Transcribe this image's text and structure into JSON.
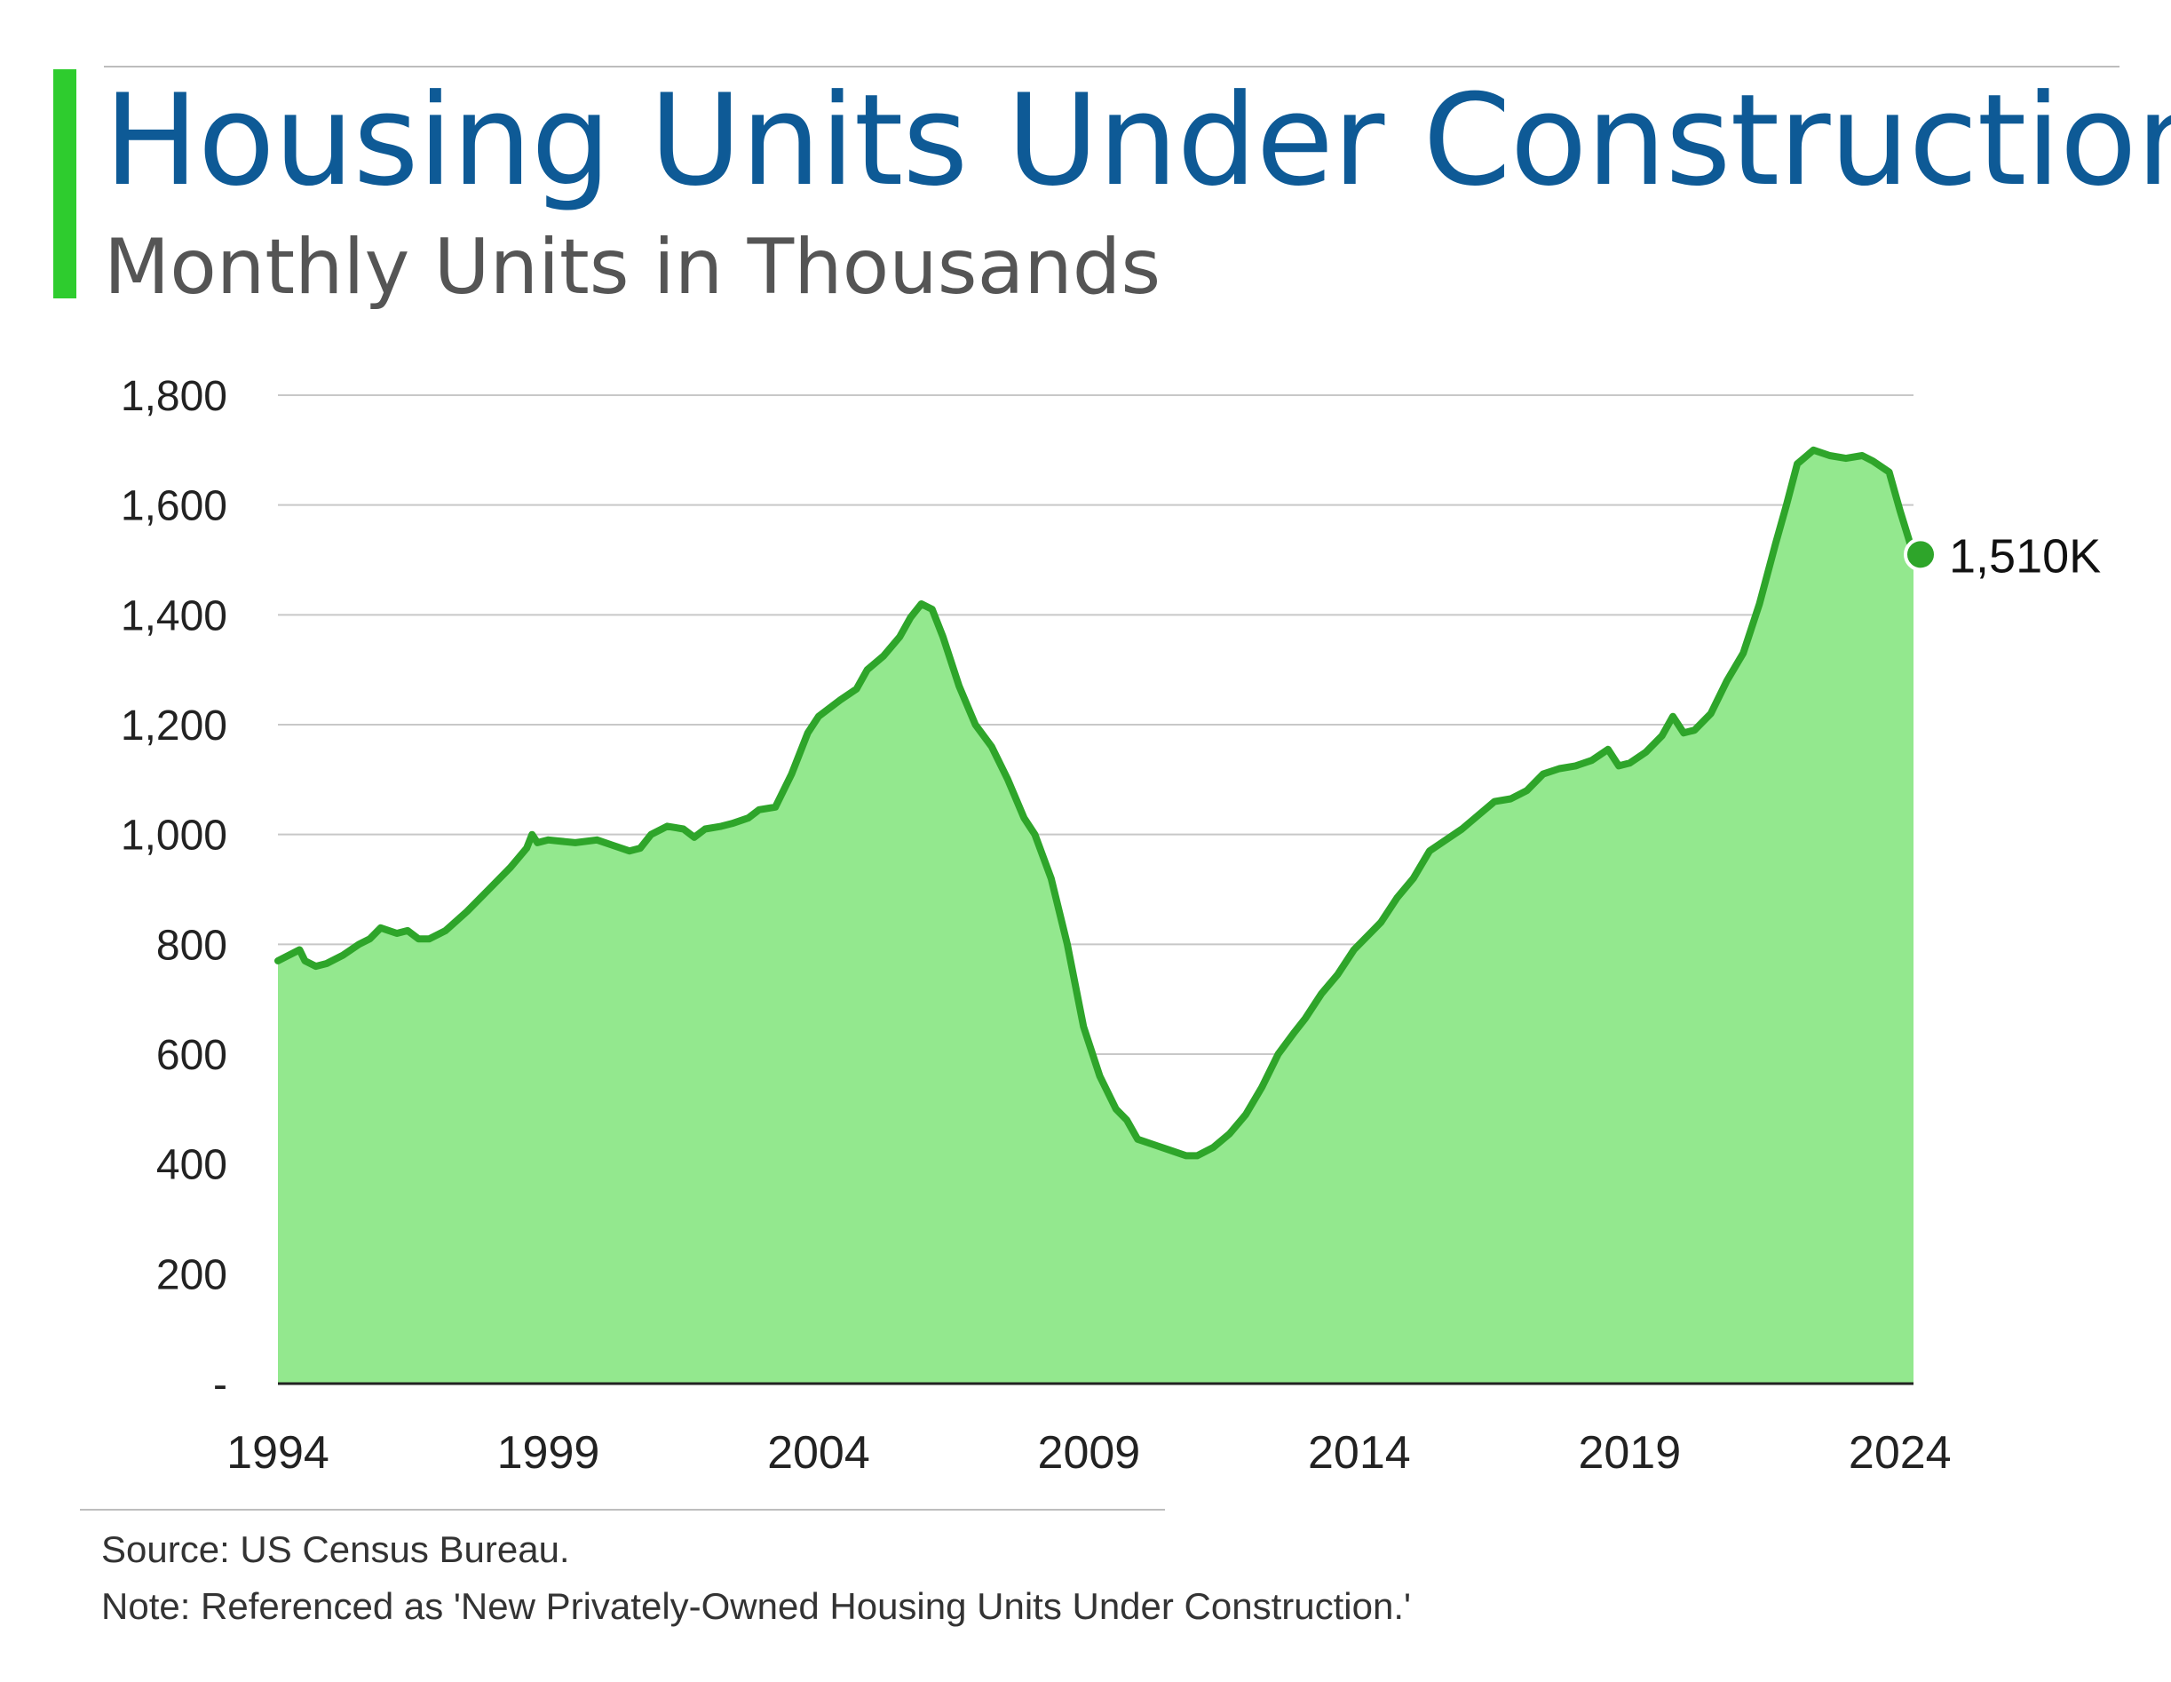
{
  "header": {
    "title": "Housing Units Under Construction",
    "subtitle": "Monthly Units in Thousands"
  },
  "footer": {
    "source": "Source: US Census Bureau.",
    "note": "Note: Referenced as 'New Privately-Owned Housing Units Under Construction.'"
  },
  "colors": {
    "title": "#0e5a96",
    "accent": "#2ecc2e",
    "area_fill": "#93e88e",
    "line": "#2ea52a",
    "gridline": "#c8c8c8"
  },
  "chart_data": {
    "type": "area",
    "title": "Housing Units Under Construction",
    "subtitle": "Monthly Units in Thousands",
    "xlabel": "",
    "ylabel": "",
    "xlim": [
      1994,
      2024.25
    ],
    "ylim": [
      0,
      1800
    ],
    "grid": true,
    "legend": "none",
    "x_ticks": [
      "1994",
      "1999",
      "2004",
      "2009",
      "2014",
      "2019",
      "2024"
    ],
    "y_ticks": [
      "-",
      "200",
      "400",
      "600",
      "800",
      "1,000",
      "1,200",
      "1,400",
      "1,600",
      "1,800"
    ],
    "series": [
      {
        "values": [
          [
            1994.0,
            770
          ],
          [
            1994.2,
            780
          ],
          [
            1994.4,
            790
          ],
          [
            1994.5,
            770
          ],
          [
            1994.7,
            760
          ],
          [
            1994.9,
            765
          ],
          [
            1995.2,
            780
          ],
          [
            1995.5,
            800
          ],
          [
            1995.7,
            810
          ],
          [
            1995.9,
            830
          ],
          [
            1996.2,
            820
          ],
          [
            1996.4,
            825
          ],
          [
            1996.6,
            810
          ],
          [
            1996.8,
            810
          ],
          [
            1997.1,
            825
          ],
          [
            1997.5,
            860
          ],
          [
            1997.9,
            900
          ],
          [
            1998.3,
            940
          ],
          [
            1998.6,
            975
          ],
          [
            1998.7,
            1000
          ],
          [
            1998.8,
            985
          ],
          [
            1999.0,
            990
          ],
          [
            1999.5,
            985
          ],
          [
            1999.9,
            990
          ],
          [
            2000.2,
            980
          ],
          [
            2000.5,
            970
          ],
          [
            2000.7,
            975
          ],
          [
            2000.9,
            1000
          ],
          [
            2001.2,
            1015
          ],
          [
            2001.5,
            1010
          ],
          [
            2001.7,
            995
          ],
          [
            2001.9,
            1010
          ],
          [
            2002.2,
            1015
          ],
          [
            2002.4,
            1020
          ],
          [
            2002.7,
            1030
          ],
          [
            2002.9,
            1045
          ],
          [
            2003.2,
            1050
          ],
          [
            2003.5,
            1110
          ],
          [
            2003.8,
            1185
          ],
          [
            2004.0,
            1215
          ],
          [
            2004.2,
            1230
          ],
          [
            2004.4,
            1245
          ],
          [
            2004.7,
            1265
          ],
          [
            2004.9,
            1300
          ],
          [
            2005.2,
            1325
          ],
          [
            2005.5,
            1360
          ],
          [
            2005.7,
            1395
          ],
          [
            2005.9,
            1420
          ],
          [
            2006.1,
            1410
          ],
          [
            2006.3,
            1360
          ],
          [
            2006.6,
            1270
          ],
          [
            2006.9,
            1200
          ],
          [
            2007.2,
            1160
          ],
          [
            2007.5,
            1100
          ],
          [
            2007.8,
            1030
          ],
          [
            2008.0,
            1000
          ],
          [
            2008.3,
            920
          ],
          [
            2008.6,
            800
          ],
          [
            2008.9,
            650
          ],
          [
            2009.2,
            560
          ],
          [
            2009.5,
            500
          ],
          [
            2009.7,
            480
          ],
          [
            2009.9,
            445
          ],
          [
            2010.2,
            435
          ],
          [
            2010.5,
            425
          ],
          [
            2010.8,
            415
          ],
          [
            2011.0,
            415
          ],
          [
            2011.3,
            430
          ],
          [
            2011.6,
            455
          ],
          [
            2011.9,
            490
          ],
          [
            2012.2,
            540
          ],
          [
            2012.5,
            600
          ],
          [
            2012.8,
            640
          ],
          [
            2013.0,
            665
          ],
          [
            2013.3,
            710
          ],
          [
            2013.6,
            745
          ],
          [
            2013.9,
            790
          ],
          [
            2014.2,
            820
          ],
          [
            2014.4,
            840
          ],
          [
            2014.7,
            885
          ],
          [
            2015.0,
            920
          ],
          [
            2015.3,
            970
          ],
          [
            2015.6,
            990
          ],
          [
            2015.9,
            1010
          ],
          [
            2016.2,
            1035
          ],
          [
            2016.5,
            1060
          ],
          [
            2016.8,
            1065
          ],
          [
            2017.1,
            1080
          ],
          [
            2017.4,
            1110
          ],
          [
            2017.7,
            1120
          ],
          [
            2018.0,
            1125
          ],
          [
            2018.3,
            1135
          ],
          [
            2018.6,
            1155
          ],
          [
            2018.8,
            1125
          ],
          [
            2019.0,
            1130
          ],
          [
            2019.3,
            1150
          ],
          [
            2019.6,
            1180
          ],
          [
            2019.8,
            1215
          ],
          [
            2020.0,
            1185
          ],
          [
            2020.2,
            1190
          ],
          [
            2020.5,
            1220
          ],
          [
            2020.8,
            1280
          ],
          [
            2021.1,
            1330
          ],
          [
            2021.4,
            1420
          ],
          [
            2021.7,
            1530
          ],
          [
            2021.9,
            1600
          ],
          [
            2022.1,
            1675
          ],
          [
            2022.4,
            1700
          ],
          [
            2022.7,
            1690
          ],
          [
            2023.0,
            1685
          ],
          [
            2023.3,
            1690
          ],
          [
            2023.5,
            1680
          ],
          [
            2023.8,
            1660
          ],
          [
            2024.0,
            1590
          ],
          [
            2024.25,
            1510
          ]
        ]
      }
    ],
    "annotations": [
      {
        "x": 2024.25,
        "y": 1510,
        "text": "1,510K"
      }
    ]
  }
}
